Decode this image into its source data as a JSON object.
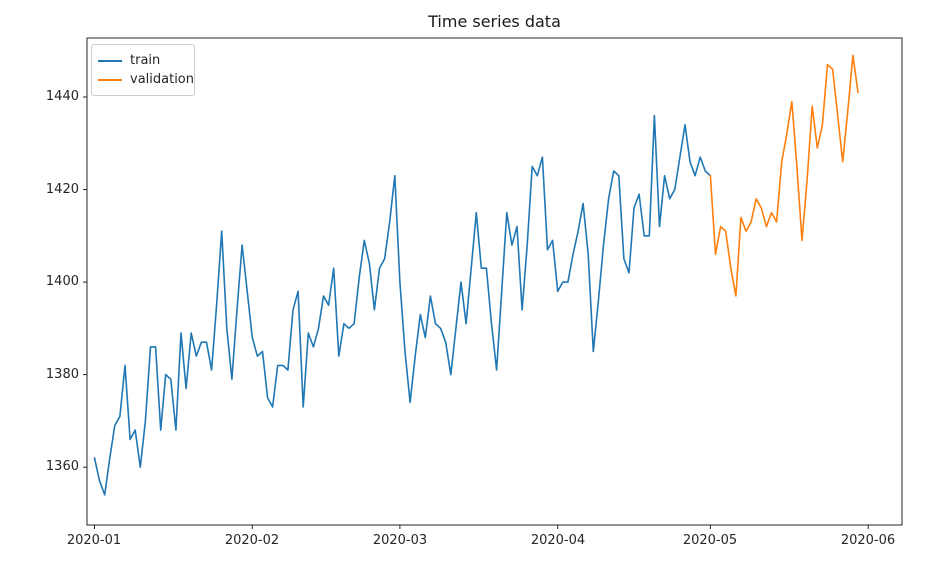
{
  "chart_data": {
    "type": "line",
    "title": "Time series data",
    "grid": false,
    "legend_position": "upper left",
    "x_axis": {
      "tick_labels": [
        "2020-01",
        "2020-02",
        "2020-03",
        "2020-04",
        "2020-05",
        "2020-06"
      ],
      "tick_days": [
        0,
        31,
        60,
        91,
        121,
        152
      ],
      "xlim_days": [
        -1.47,
        158.64
      ]
    },
    "y_axis": {
      "tick_labels": [
        "1360",
        "1380",
        "1400",
        "1420",
        "1440"
      ],
      "tick_values": [
        1360,
        1380,
        1400,
        1420,
        1440
      ],
      "ylim": [
        1347.5,
        1452.75
      ]
    },
    "series": [
      {
        "name": "train",
        "color": "#1f77b4",
        "start_day": 0,
        "values": [
          1362,
          1357,
          1354,
          1362,
          1369,
          1371,
          1382,
          1366,
          1368,
          1360,
          1370,
          1386,
          1386,
          1368,
          1380,
          1379,
          1368,
          1389,
          1377,
          1389,
          1384,
          1387,
          1387,
          1381,
          1395,
          1411,
          1390,
          1379,
          1394,
          1408,
          1398,
          1388,
          1384,
          1385,
          1375,
          1373,
          1382,
          1382,
          1381,
          1394,
          1398,
          1373,
          1389,
          1386,
          1390,
          1397,
          1395,
          1403,
          1384,
          1391,
          1390,
          1391,
          1401,
          1409,
          1404,
          1394,
          1403,
          1405,
          1413,
          1423,
          1400,
          1385,
          1374,
          1384,
          1393,
          1388,
          1397,
          1391,
          1390,
          1387,
          1380,
          1390,
          1400,
          1391,
          1403,
          1415,
          1403,
          1403,
          1391,
          1381,
          1398,
          1415,
          1408,
          1412,
          1394,
          1408,
          1425,
          1423,
          1427,
          1407,
          1409,
          1398,
          1400,
          1400,
          1406,
          1411,
          1417,
          1406,
          1385,
          1396,
          1408,
          1418,
          1424,
          1423,
          1405,
          1402,
          1416,
          1419,
          1410,
          1410,
          1436,
          1412,
          1423,
          1418,
          1420,
          1427,
          1434,
          1426,
          1423,
          1427,
          1424,
          1423
        ]
      },
      {
        "name": "validation",
        "color": "#ff7f0e",
        "start_day": 121,
        "values": [
          1423,
          1406,
          1412,
          1411,
          1403,
          1397,
          1414,
          1411,
          1413,
          1418,
          1416,
          1412,
          1415,
          1413,
          1426,
          1432,
          1439,
          1425,
          1409,
          1422,
          1438,
          1429,
          1434,
          1447,
          1446,
          1436,
          1426,
          1437,
          1449,
          1441
        ]
      }
    ]
  }
}
